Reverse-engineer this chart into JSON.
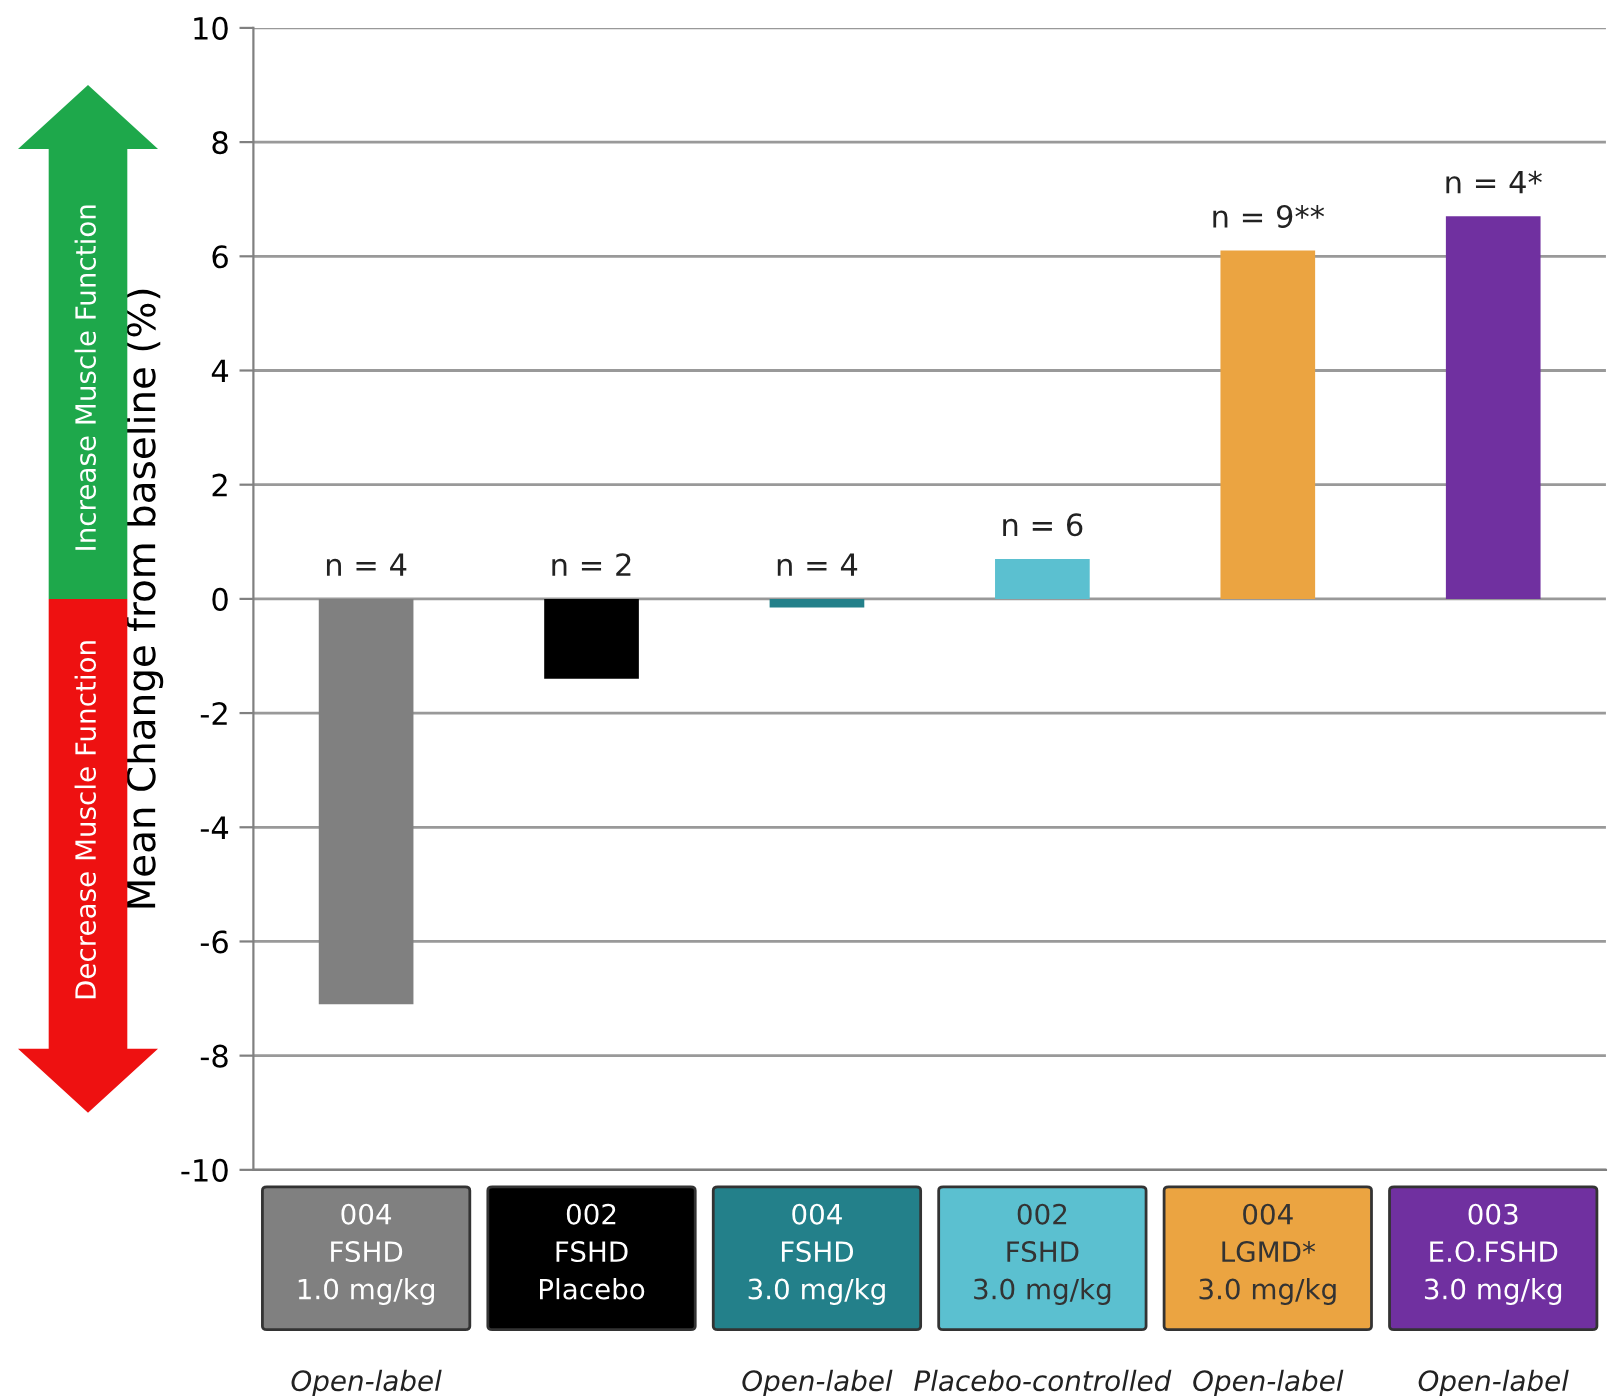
{
  "chart_data": {
    "type": "bar",
    "ylabel": "Mean Change from baseline (%)",
    "categories": [
      "004\nFSHD\n1.0 mg/kg",
      "002\nFSHD\nPlacebo",
      "004\nFSHD\n3.0 mg/kg",
      "002\nFSHD\n3.0 mg/kg",
      "004\nLGMD*\n3.0 mg/kg",
      "003\nE.O.FSHD\n3.0 mg/kg"
    ],
    "values": [
      -7.1,
      -1.4,
      -0.15,
      0.7,
      6.1,
      6.7
    ],
    "colors": [
      "#808080",
      "#000000",
      "#23808a",
      "#5bc0d0",
      "#eba441",
      "#7030a0"
    ],
    "ylim": [
      -10,
      10
    ],
    "yticks": [
      -10,
      -8,
      -6,
      -4,
      -2,
      0,
      2,
      4,
      6,
      8,
      10
    ],
    "grid": "y",
    "annotations": [
      "Increase Muscle Function",
      "Decrease Muscle Function",
      "Open-label",
      "Open-label",
      "Placebo-controlled",
      "Open-label",
      "Open-label",
      {
        "text": "n = 4",
        "x": "004\nFSHD\n1.0 mg/kg",
        "y": 0
      },
      {
        "text": "n = 2",
        "x": "002\nFSHD\nPlacebo",
        "y": 0
      },
      {
        "text": "n = 4",
        "x": "004\nFSHD\n3.0 mg/kg",
        "y": 0
      },
      {
        "text": "n = 6",
        "x": "002\nFSHD\n3.0 mg/kg",
        "y": 0.7
      },
      {
        "text": "n = 9**",
        "x": "004\nLGMD*\n3.0 mg/kg",
        "y": 6.1
      },
      {
        "text": "n = 4*",
        "x": "003\nE.O.FSHD\n3.0 mg/kg",
        "y": 6.7
      }
    ]
  }
}
